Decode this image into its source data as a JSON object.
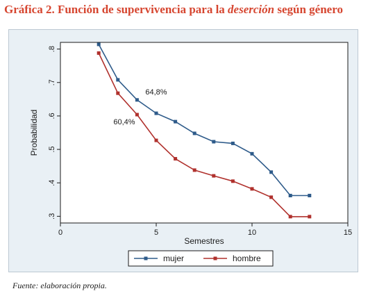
{
  "title": {
    "prefix": "Gráfica 2. Función de supervivencia para la ",
    "emphasis": "deserción",
    "suffix": " según género"
  },
  "source": "Fuente: elaboración propia.",
  "colors": {
    "title": "#d6452f",
    "mujer": "#2e5b8a",
    "hombre": "#b0312d",
    "plot_bg": "#ffffff",
    "frame_bg": "#e9f0f5"
  },
  "chart_data": {
    "type": "line",
    "xlabel": "Semestres",
    "ylabel": "Probabilidad",
    "xlim": [
      0,
      15
    ],
    "ylim": [
      0.28,
      0.82
    ],
    "xticks": [
      0,
      5,
      10,
      15
    ],
    "yticks": [
      0.3,
      0.4,
      0.5,
      0.6,
      0.7,
      0.8
    ],
    "ytick_labels": [
      ".3",
      ".4",
      ".5",
      ".6",
      ".7",
      ".8"
    ],
    "grid": false,
    "legend_position": "bottom",
    "series": [
      {
        "name": "mujer",
        "x": [
          2,
          3,
          4,
          5,
          6,
          7,
          8,
          9,
          10,
          11,
          12,
          13
        ],
        "y": [
          0.814,
          0.708,
          0.648,
          0.608,
          0.583,
          0.548,
          0.523,
          0.518,
          0.487,
          0.432,
          0.362,
          0.362
        ]
      },
      {
        "name": "hombre",
        "x": [
          2,
          3,
          4,
          5,
          6,
          7,
          8,
          9,
          10,
          11,
          12,
          13
        ],
        "y": [
          0.788,
          0.668,
          0.604,
          0.527,
          0.472,
          0.438,
          0.421,
          0.405,
          0.382,
          0.357,
          0.299,
          0.299
        ]
      }
    ],
    "annotations": [
      {
        "text": "64,8%",
        "x": 4,
        "y": 0.648,
        "series": "mujer"
      },
      {
        "text": "60,4%",
        "x": 4,
        "y": 0.604,
        "series": "hombre"
      }
    ]
  }
}
